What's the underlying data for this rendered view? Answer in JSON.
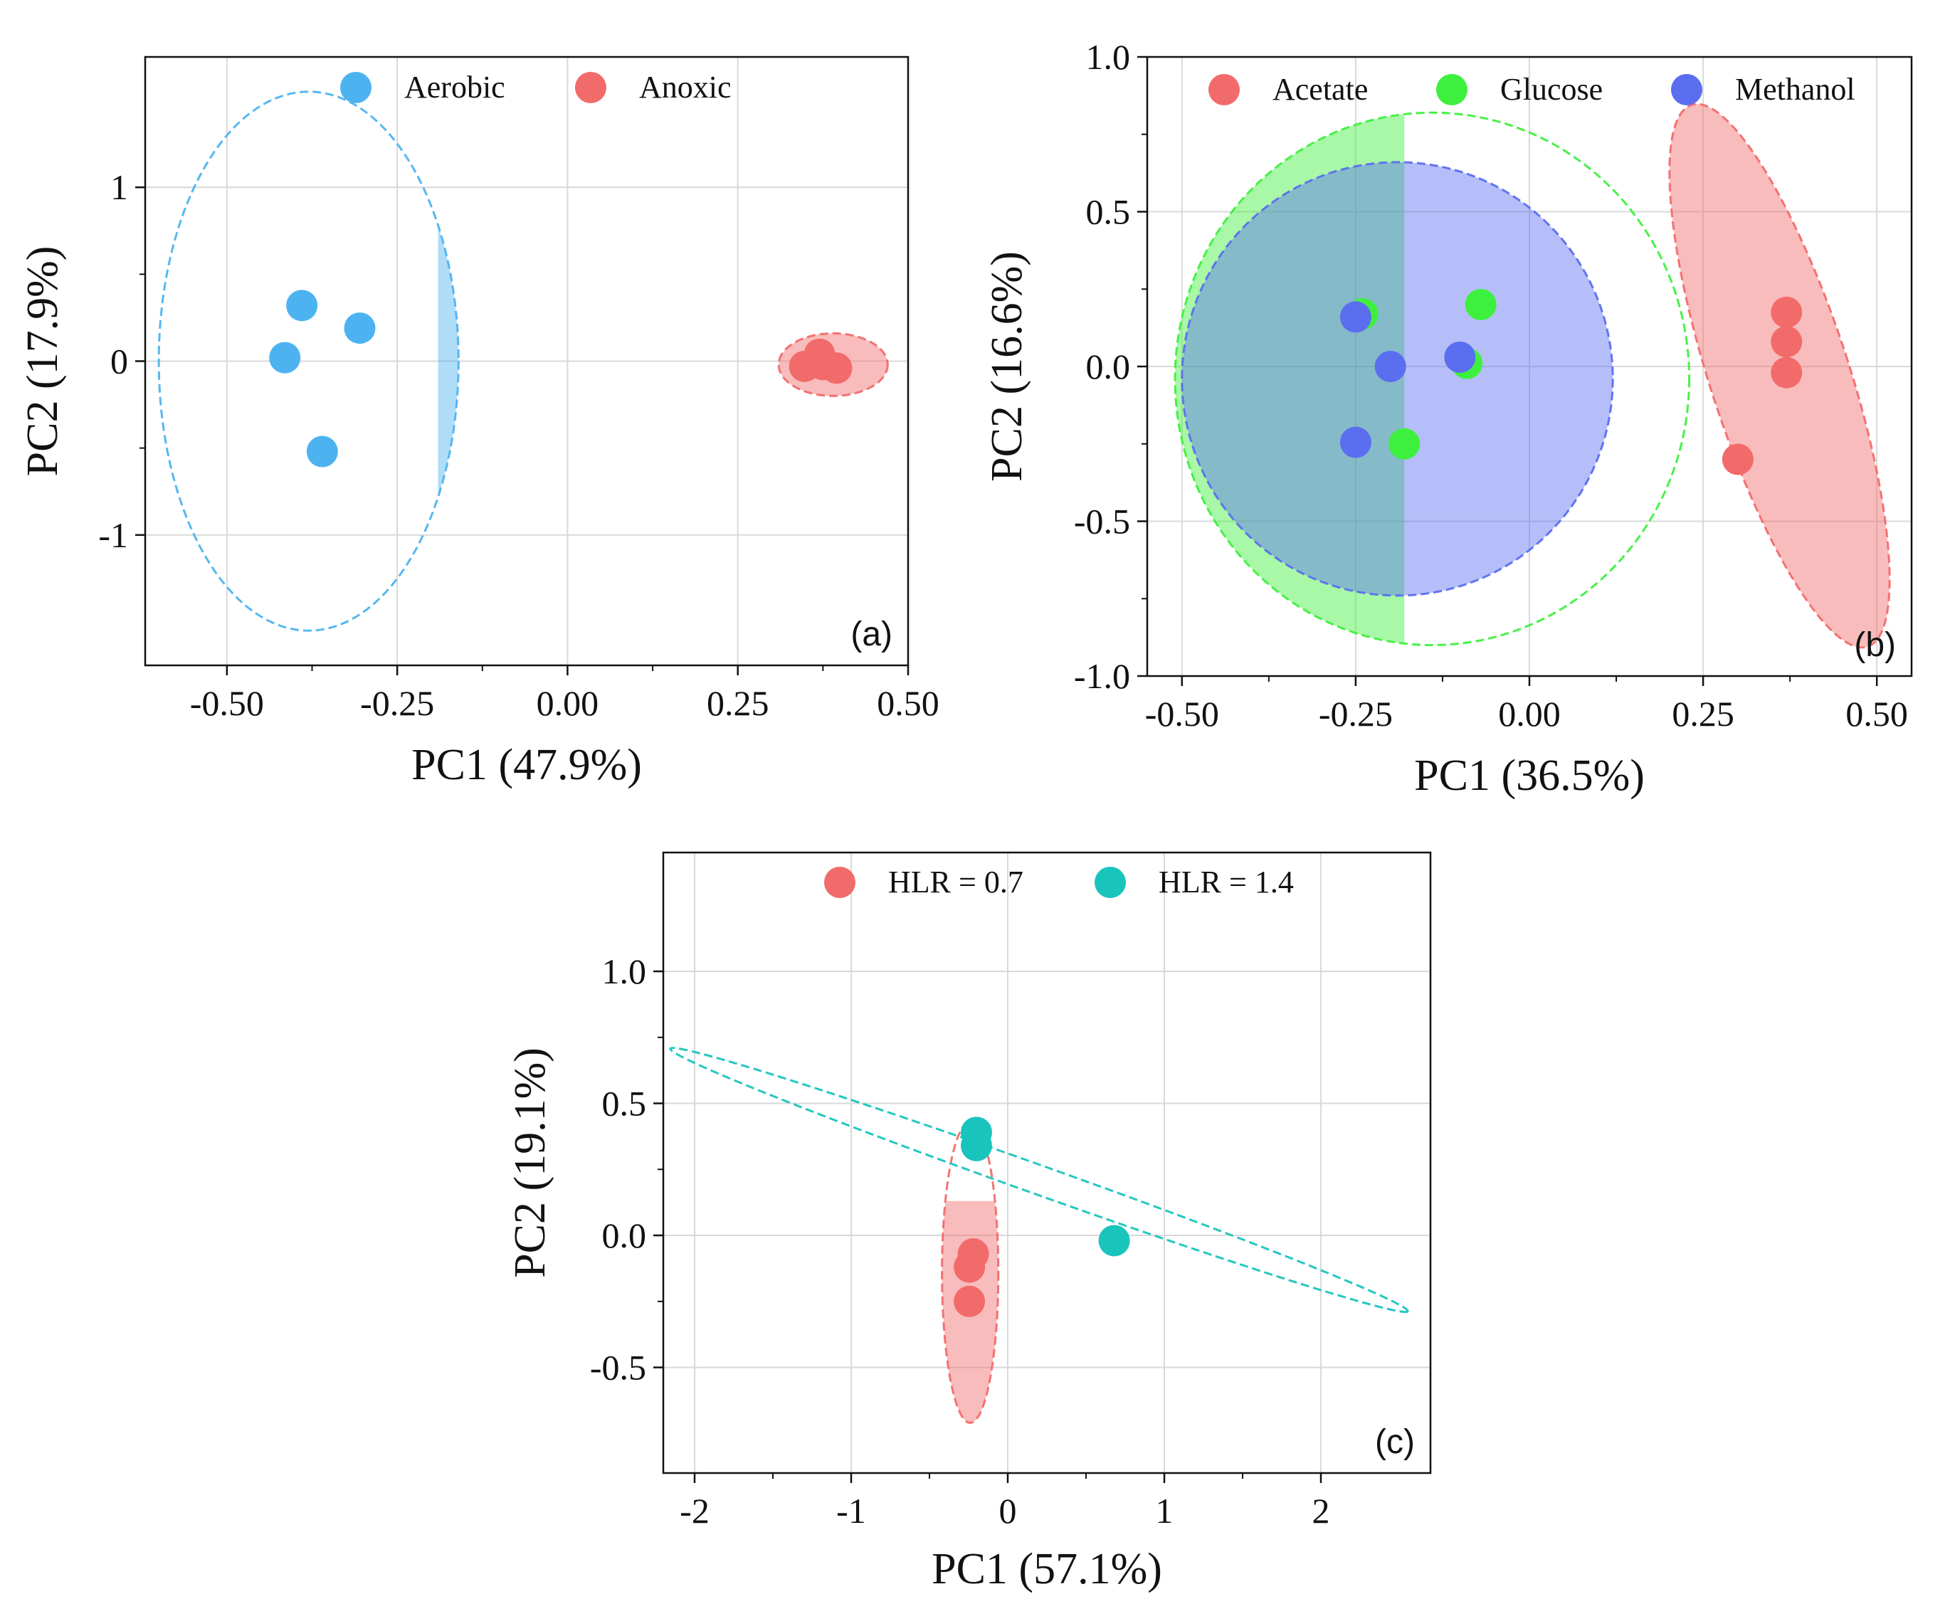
{
  "chart_data": [
    {
      "type": "scatter",
      "panel": "(a)",
      "xlabel": "PC1 (47.9%)",
      "ylabel": "PC2 (17.9%)",
      "xlim": [
        -0.62,
        0.5
      ],
      "ylim": [
        -1.75,
        1.75
      ],
      "xticks": [
        -0.5,
        -0.25,
        0.0,
        0.25,
        0.5
      ],
      "xtick_labels": [
        "-0.50",
        "-0.25",
        "0.00",
        "0.25",
        "0.50"
      ],
      "yticks": [
        -1,
        0,
        1
      ],
      "ytick_labels": [
        "-1",
        "0",
        "1"
      ],
      "grid": true,
      "legend": "top",
      "series": [
        {
          "name": "Aerobic",
          "color": "#4db3f0",
          "points": [
            [
              -0.39,
              0.32
            ],
            [
              -0.305,
              0.19
            ],
            [
              -0.415,
              0.02
            ],
            [
              -0.36,
              -0.52
            ]
          ],
          "ellipse": {
            "cx": -0.38,
            "cy": 0.0,
            "rx": 0.22,
            "ry": 1.55,
            "angle": 0
          },
          "fill": {
            "x_from": -0.19,
            "x_to": 0.5
          }
        },
        {
          "name": "Anoxic",
          "color": "#f26b6b",
          "points": [
            [
              0.37,
              0.04
            ],
            [
              0.348,
              -0.03
            ],
            [
              0.375,
              -0.02
            ],
            [
              0.395,
              -0.04
            ]
          ],
          "ellipse": {
            "cx": 0.39,
            "cy": -0.02,
            "rx": 0.08,
            "ry": 0.18,
            "angle": 0
          },
          "fill": {
            "x_from": 0.31,
            "x_to": 0.5
          }
        }
      ]
    },
    {
      "type": "scatter",
      "panel": "(b)",
      "xlabel": "PC1 (36.5%)",
      "ylabel": "PC2 (16.6%)",
      "xlim": [
        -0.55,
        0.55
      ],
      "ylim": [
        -1.0,
        1.0
      ],
      "xticks": [
        -0.5,
        -0.25,
        0.0,
        0.25,
        0.5
      ],
      "xtick_labels": [
        "-0.50",
        "-0.25",
        "0.00",
        "0.25",
        "0.50"
      ],
      "yticks": [
        -1.0,
        -0.5,
        0.0,
        0.5,
        1.0
      ],
      "ytick_labels": [
        "-1.0",
        "-0.5",
        "0.0",
        "0.5",
        "1.0"
      ],
      "grid": true,
      "legend": "top",
      "series": [
        {
          "name": "Acetate",
          "color": "#f26b6b",
          "points": [
            [
              0.37,
              0.175
            ],
            [
              0.37,
              0.08
            ],
            [
              0.37,
              -0.02
            ],
            [
              0.3,
              -0.3
            ]
          ],
          "ellipse": {
            "cx": 0.36,
            "cy": -0.03,
            "rx": 0.1,
            "ry": 0.92,
            "angle": 18
          },
          "fill": {
            "x_from": -0.55,
            "x_to": 0.55
          }
        },
        {
          "name": "Glucose",
          "color": "#3ef03e",
          "points": [
            [
              -0.24,
              0.17
            ],
            [
              -0.07,
              0.2
            ],
            [
              -0.09,
              0.01
            ],
            [
              -0.18,
              -0.25
            ]
          ],
          "ellipse": {
            "cx": -0.14,
            "cy": -0.04,
            "rx": 0.37,
            "ry": 0.86,
            "angle": 0
          },
          "fill": {
            "x_from": -0.55,
            "x_to": -0.18
          }
        },
        {
          "name": "Methanol",
          "color": "#5b6ef0",
          "points": [
            [
              -0.25,
              0.16
            ],
            [
              -0.2,
              0.0
            ],
            [
              -0.1,
              0.03
            ],
            [
              -0.25,
              -0.245
            ]
          ],
          "ellipse": {
            "cx": -0.19,
            "cy": -0.04,
            "rx": 0.31,
            "ry": 0.7,
            "angle": 0
          },
          "fill": {
            "x_from": -0.55,
            "x_to": 0.55
          }
        }
      ]
    },
    {
      "type": "scatter",
      "panel": "(c)",
      "xlabel": "PC1 (57.1%)",
      "ylabel": "PC2 (19.1%)",
      "xlim": [
        -2.2,
        2.7
      ],
      "ylim": [
        -0.9,
        1.45
      ],
      "xticks": [
        -2,
        -1,
        0,
        1,
        2
      ],
      "xtick_labels": [
        "-2",
        "-1",
        "0",
        "1",
        "2"
      ],
      "yticks": [
        -0.5,
        0.0,
        0.5,
        1.0
      ],
      "ytick_labels": [
        "-0.5",
        "0.0",
        "0.5",
        "1.0"
      ],
      "grid": true,
      "legend": "top",
      "series": [
        {
          "name": "HLR = 0.7",
          "color": "#f26b6b",
          "points": [
            [
              -0.22,
              -0.07
            ],
            [
              -0.245,
              -0.12
            ],
            [
              -0.245,
              -0.25
            ]
          ],
          "ellipse": {
            "cx": -0.24,
            "cy": -0.14,
            "rx": 0.18,
            "ry": 0.57,
            "angle": 0
          },
          "fill": {
            "x_from": -2.2,
            "x_to": 2.7,
            "y_to": 0.13
          }
        },
        {
          "name": "HLR = 1.4",
          "color": "#19c4bd",
          "points": [
            [
              -0.2,
              0.39
            ],
            [
              -0.2,
              0.34
            ],
            [
              0.68,
              -0.02
            ]
          ],
          "ellipse": {
            "cx": 0.2,
            "cy": 0.21,
            "rx": 2.5,
            "ry": 0.055,
            "angle": -19.6
          },
          "fill": {
            "x_from": -1.8,
            "x_to": 2.7,
            "y_from": 0.96
          }
        }
      ]
    }
  ]
}
